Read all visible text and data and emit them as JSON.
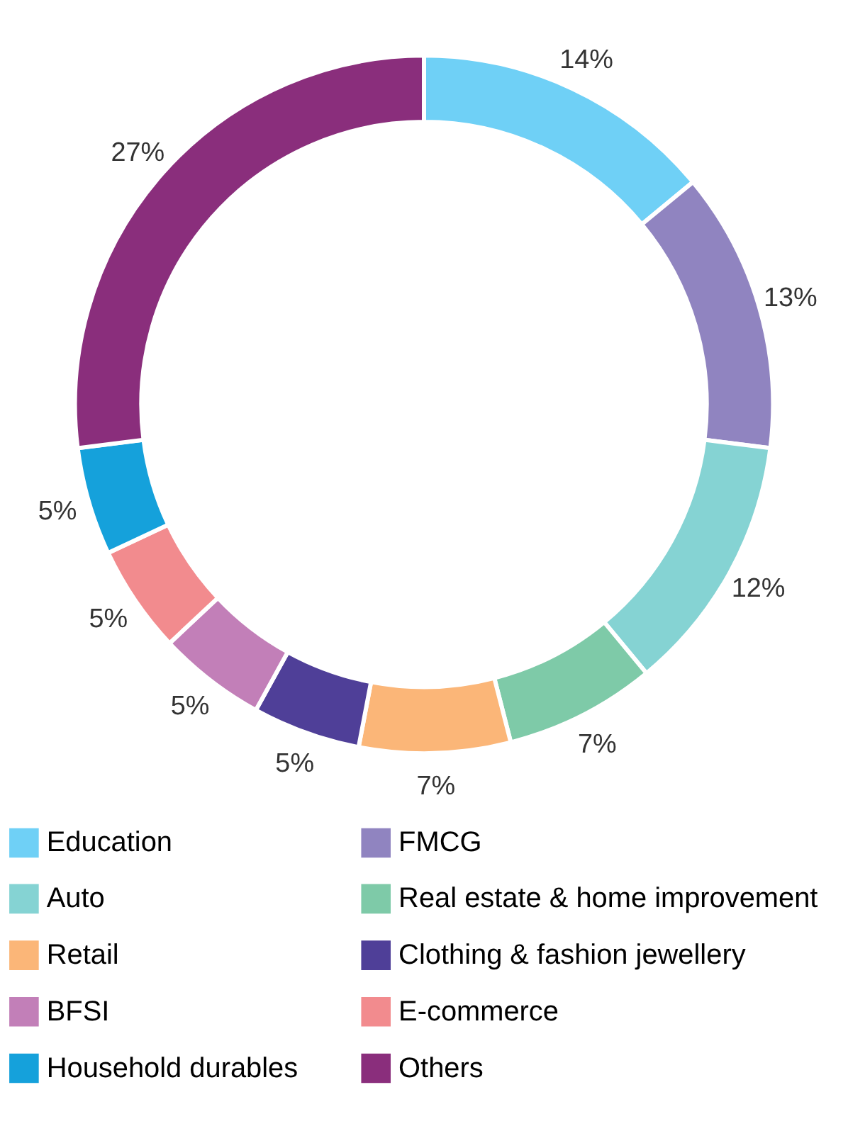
{
  "chart_data": {
    "type": "donut",
    "categories": [
      "Education",
      "FMCG",
      "Auto",
      "Real estate & home improvement",
      "Retail",
      "Clothing & fashion jewellery",
      "BFSI",
      "E-commerce",
      "Household durables",
      "Others"
    ],
    "values": [
      14,
      13,
      12,
      7,
      7,
      5,
      5,
      5,
      5,
      27
    ],
    "value_labels": [
      "14%",
      "13%",
      "12%",
      "7%",
      "7%",
      "5%",
      "5%",
      "5%",
      "5%",
      "27%"
    ],
    "colors": [
      "#6fd0f6",
      "#9084c0",
      "#85d3d3",
      "#7ecaa8",
      "#fbb678",
      "#4f3f98",
      "#c27fb8",
      "#f28b8e",
      "#15a1db",
      "#8a2e7c"
    ],
    "legend": "bottom"
  }
}
